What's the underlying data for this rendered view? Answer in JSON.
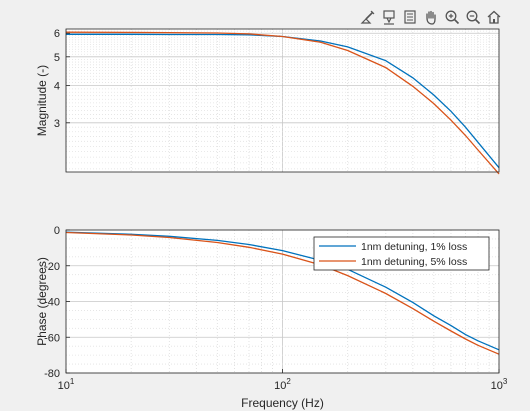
{
  "toolbar": {
    "icons": [
      "brush-icon",
      "datatip-icon",
      "edit-icon",
      "pan-icon",
      "zoom-in-icon",
      "zoom-out-icon",
      "home-icon"
    ]
  },
  "colors": {
    "background": "#f0f0f0",
    "axes_bg": "#ffffff",
    "series1": "#0072bd",
    "series2": "#d95319",
    "axis_text": "#262626",
    "grid": "#d2d2d2"
  },
  "chart_data": [
    {
      "type": "line",
      "title": "",
      "xlabel": "",
      "ylabel": "Magnitude (-)",
      "xscale": "log",
      "yscale": "log",
      "xlim": [
        10,
        1000
      ],
      "ylim": [
        2.05,
        6.2
      ],
      "grid": "on (major and minor, dotted)",
      "yticks": [
        3,
        4,
        5,
        6
      ],
      "ytick_labels": [
        "3",
        "4",
        "5",
        "6"
      ],
      "series": [
        {
          "name": "1nm detuning, 1% loss",
          "x": [
            10,
            20,
            30,
            50,
            70,
            100,
            150,
            200,
            300,
            400,
            500,
            600,
            700,
            800,
            1000
          ],
          "y": [
            5.95,
            5.95,
            5.94,
            5.94,
            5.93,
            5.85,
            5.65,
            5.4,
            4.85,
            4.25,
            3.72,
            3.28,
            2.9,
            2.58,
            2.12
          ]
        },
        {
          "name": "1nm detuning, 5% loss",
          "x": [
            10,
            20,
            30,
            50,
            70,
            100,
            150,
            200,
            300,
            400,
            500,
            600,
            700,
            800,
            1000
          ],
          "y": [
            6.05,
            6.04,
            6.03,
            6.01,
            5.97,
            5.85,
            5.6,
            5.25,
            4.6,
            3.98,
            3.48,
            3.06,
            2.72,
            2.43,
            2.02
          ]
        }
      ]
    },
    {
      "type": "line",
      "title": "",
      "xlabel": "Frequency (Hz)",
      "ylabel": "Phase (degrees)",
      "xscale": "log",
      "xlim": [
        10,
        1000
      ],
      "ylim": [
        -80,
        0
      ],
      "grid": "on (major and minor, dotted)",
      "yticks": [
        -80,
        -60,
        -40,
        -20,
        0
      ],
      "ytick_labels": [
        "-80",
        "-60",
        "-40",
        "-20",
        "0"
      ],
      "xticks": [
        10,
        100,
        1000
      ],
      "xtick_labels": [
        {
          "base": "10",
          "exp": "1"
        },
        {
          "base": "10",
          "exp": "2"
        },
        {
          "base": "10",
          "exp": "3"
        }
      ],
      "legend": "top-right",
      "series": [
        {
          "name": "1nm detuning, 1% loss",
          "x": [
            10,
            20,
            30,
            50,
            70,
            100,
            150,
            200,
            300,
            400,
            500,
            600,
            700,
            800,
            1000
          ],
          "y": [
            -1.2,
            -2.4,
            -3.5,
            -5.8,
            -8.1,
            -11.5,
            -17,
            -22,
            -32,
            -40.5,
            -48,
            -53.5,
            -58.5,
            -62,
            -67
          ]
        },
        {
          "name": "1nm detuning, 5% loss",
          "x": [
            10,
            20,
            30,
            50,
            70,
            100,
            150,
            200,
            300,
            400,
            500,
            600,
            700,
            800,
            1000
          ],
          "y": [
            -1.4,
            -2.8,
            -4.2,
            -7,
            -9.7,
            -13.5,
            -19.5,
            -25.5,
            -35.5,
            -44,
            -51,
            -56.5,
            -61,
            -64.5,
            -69.5
          ]
        }
      ]
    }
  ]
}
